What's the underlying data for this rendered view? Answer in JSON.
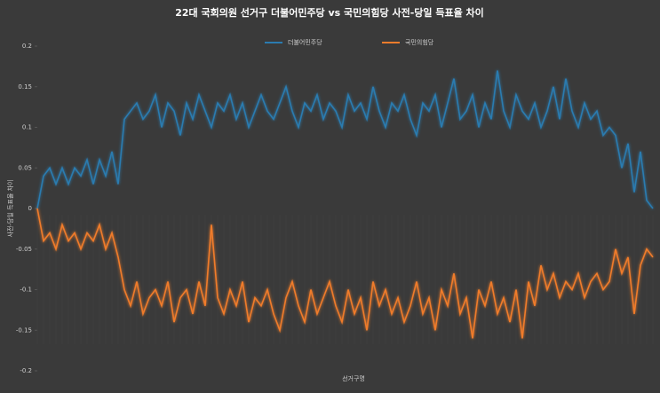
{
  "chart_data": {
    "type": "line",
    "title": "22대 국회의원 선거구 더불어민주당 vs 국민의힘당 사전-당일 득표율 차이",
    "x_label": "선거구명",
    "y_label": "사전-당일 득표율 차이",
    "legend": "top",
    "categories": [
      null,
      null,
      null,
      null,
      null,
      null,
      null,
      null,
      null,
      null,
      null,
      null,
      null,
      null,
      null,
      null,
      null,
      null,
      null,
      null,
      null,
      null,
      null,
      null,
      null,
      null,
      null,
      null,
      null,
      null,
      null,
      null,
      null,
      null,
      null,
      null,
      null,
      null,
      null,
      null,
      null,
      null,
      null,
      null,
      null,
      null,
      null,
      null,
      null,
      null,
      null,
      null,
      null,
      null,
      null,
      null,
      null,
      null,
      null,
      null,
      null,
      null,
      null,
      null,
      null,
      null,
      null,
      null,
      null,
      null,
      null,
      null,
      null,
      null,
      null,
      null,
      null,
      null,
      null,
      null,
      null,
      null,
      null,
      null,
      null,
      null,
      null,
      null,
      null,
      null,
      null,
      null,
      null,
      null,
      null,
      null,
      null,
      null,
      null,
      null
    ],
    "ylim": [
      -0.2,
      0.2
    ],
    "yticks": [
      -0.2,
      -0.15,
      -0.1,
      -0.05,
      0,
      0.05,
      0.1,
      0.15,
      0.2
    ],
    "series": [
      {
        "name": "더불어민주당",
        "color": "#2b7bb0",
        "values": [
          0.0,
          0.04,
          0.05,
          0.03,
          0.05,
          0.03,
          0.05,
          0.04,
          0.06,
          0.03,
          0.06,
          0.04,
          0.07,
          0.03,
          0.11,
          0.12,
          0.13,
          0.11,
          0.12,
          0.14,
          0.1,
          0.13,
          0.12,
          0.09,
          0.13,
          0.11,
          0.14,
          0.12,
          0.1,
          0.13,
          0.12,
          0.14,
          0.11,
          0.13,
          0.1,
          0.12,
          0.14,
          0.12,
          0.11,
          0.13,
          0.15,
          0.12,
          0.1,
          0.13,
          0.12,
          0.14,
          0.11,
          0.13,
          0.12,
          0.1,
          0.14,
          0.12,
          0.13,
          0.11,
          0.15,
          0.12,
          0.1,
          0.13,
          0.12,
          0.14,
          0.11,
          0.09,
          0.13,
          0.12,
          0.14,
          0.1,
          0.13,
          0.16,
          0.11,
          0.12,
          0.14,
          0.1,
          0.13,
          0.11,
          0.17,
          0.12,
          0.1,
          0.14,
          0.12,
          0.11,
          0.13,
          0.1,
          0.12,
          0.15,
          0.11,
          0.16,
          0.12,
          0.1,
          0.13,
          0.11,
          0.12,
          0.09,
          0.1,
          0.09,
          0.05,
          0.08,
          0.02,
          0.07,
          0.01,
          0.0
        ]
      },
      {
        "name": "국민의힘당",
        "color": "#f07c2c",
        "values": [
          0.0,
          -0.04,
          -0.03,
          -0.05,
          -0.02,
          -0.04,
          -0.03,
          -0.05,
          -0.03,
          -0.04,
          -0.02,
          -0.05,
          -0.03,
          -0.06,
          -0.1,
          -0.12,
          -0.09,
          -0.13,
          -0.11,
          -0.1,
          -0.12,
          -0.09,
          -0.14,
          -0.11,
          -0.1,
          -0.13,
          -0.09,
          -0.12,
          -0.02,
          -0.11,
          -0.13,
          -0.1,
          -0.12,
          -0.09,
          -0.14,
          -0.11,
          -0.12,
          -0.1,
          -0.13,
          -0.15,
          -0.11,
          -0.09,
          -0.12,
          -0.14,
          -0.1,
          -0.13,
          -0.11,
          -0.09,
          -0.12,
          -0.14,
          -0.1,
          -0.13,
          -0.11,
          -0.15,
          -0.09,
          -0.12,
          -0.1,
          -0.13,
          -0.11,
          -0.14,
          -0.12,
          -0.09,
          -0.13,
          -0.11,
          -0.15,
          -0.1,
          -0.12,
          -0.08,
          -0.13,
          -0.11,
          -0.16,
          -0.1,
          -0.12,
          -0.09,
          -0.13,
          -0.11,
          -0.14,
          -0.1,
          -0.16,
          -0.09,
          -0.12,
          -0.07,
          -0.1,
          -0.08,
          -0.11,
          -0.09,
          -0.1,
          -0.08,
          -0.11,
          -0.09,
          -0.08,
          -0.1,
          -0.09,
          -0.05,
          -0.08,
          -0.06,
          -0.13,
          -0.07,
          -0.05,
          -0.06
        ]
      }
    ]
  }
}
